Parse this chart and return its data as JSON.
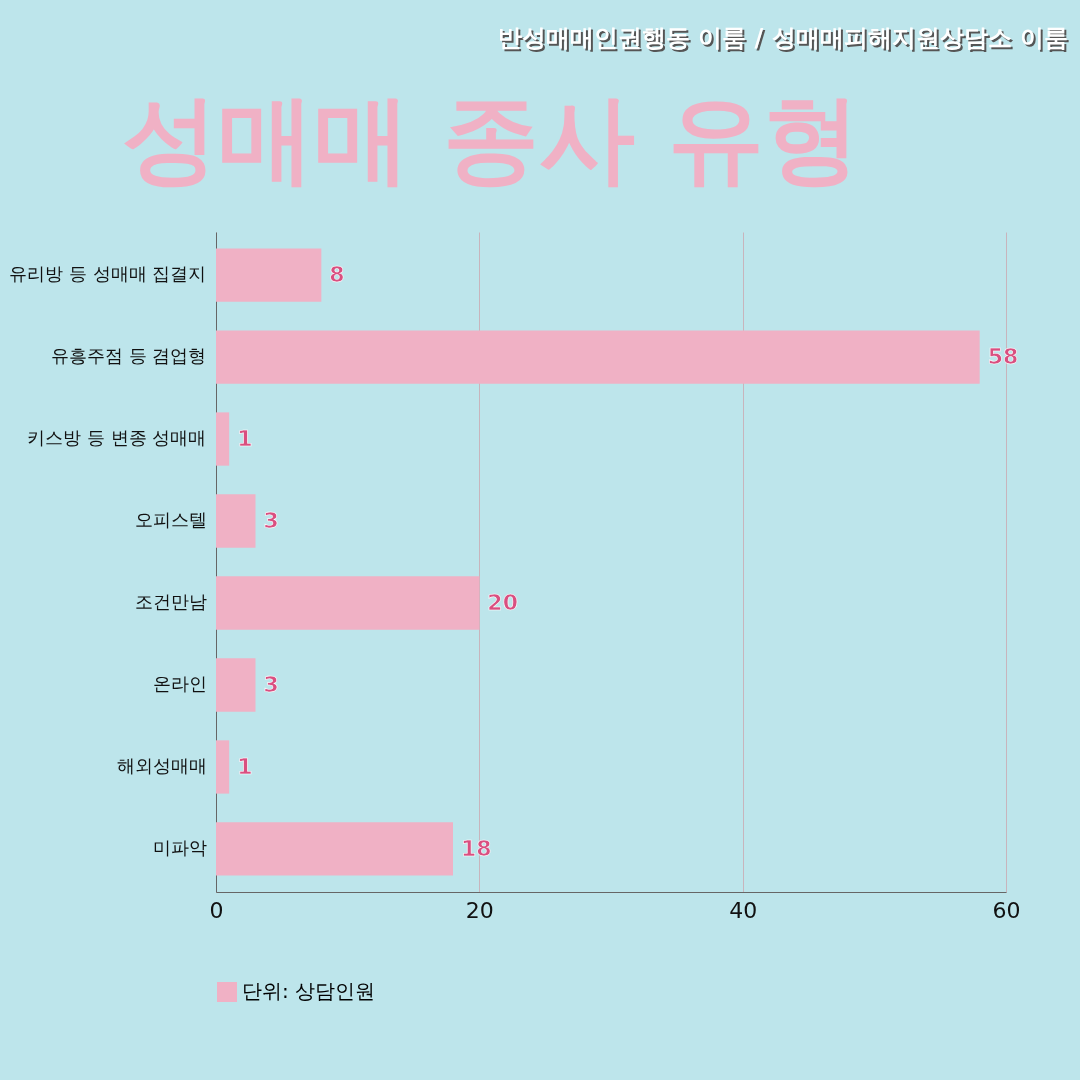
{
  "chart_data": {
    "type": "bar",
    "orientation": "horizontal",
    "title": "성매매 종사 유형",
    "annotations": [
      "반성매매인권행동 이룸 / 성매매피해지원상담소 이룸"
    ],
    "categories": [
      "유리방 등 성매매 집결지",
      "유흥주점 등 겸업형",
      "키스방 등 변종 성매매",
      "오피스텔",
      "조건만남",
      "온라인",
      "해외성매매",
      "미파악"
    ],
    "series": [
      {
        "name": "단위: 상담인원",
        "color": "#f0b1c5",
        "values": [
          8,
          58,
          1,
          3,
          20,
          3,
          1,
          18
        ]
      }
    ],
    "xlim": [
      0,
      60
    ],
    "xticks": [
      0,
      20,
      40,
      60
    ],
    "grid": "x",
    "legend": "bottom",
    "data_labels": true
  }
}
